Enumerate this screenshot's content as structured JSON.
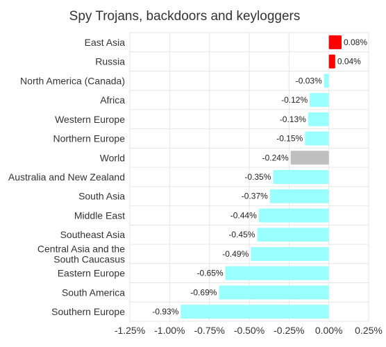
{
  "chart_data": {
    "type": "bar",
    "orientation": "horizontal",
    "title": "Spy Trojans, backdoors and keyloggers",
    "xlabel": "",
    "ylabel": "",
    "xlim": [
      -1.25,
      0.25
    ],
    "x_ticks": [
      "-1.25%",
      "-1.00%",
      "-0.75%",
      "-0.50%",
      "-0.25%",
      "0.00%",
      "0.25%"
    ],
    "grid": true,
    "colors": {
      "positive": "#ff0000",
      "negative": "#99ffff",
      "world": "#c0c0c0"
    },
    "categories": [
      {
        "label": "East Asia",
        "value": 0.08,
        "value_label": "0.08%",
        "kind": "positive"
      },
      {
        "label": "Russia",
        "value": 0.04,
        "value_label": "0.04%",
        "kind": "positive"
      },
      {
        "label": "North America (Canada)",
        "value": -0.03,
        "value_label": "-0.03%",
        "kind": "negative"
      },
      {
        "label": "Africa",
        "value": -0.12,
        "value_label": "-0.12%",
        "kind": "negative"
      },
      {
        "label": "Western Europe",
        "value": -0.13,
        "value_label": "-0.13%",
        "kind": "negative"
      },
      {
        "label": "Northern Europe",
        "value": -0.15,
        "value_label": "-0.15%",
        "kind": "negative"
      },
      {
        "label": "World",
        "value": -0.24,
        "value_label": "-0.24%",
        "kind": "world"
      },
      {
        "label": "Australia and New Zealand",
        "value": -0.35,
        "value_label": "-0.35%",
        "kind": "negative"
      },
      {
        "label": "South Asia",
        "value": -0.37,
        "value_label": "-0.37%",
        "kind": "negative"
      },
      {
        "label": "Middle East",
        "value": -0.44,
        "value_label": "-0.44%",
        "kind": "negative"
      },
      {
        "label": "Southeast Asia",
        "value": -0.45,
        "value_label": "-0.45%",
        "kind": "negative"
      },
      {
        "label": "Central Asia and the South Caucasus",
        "lines": [
          "Central Asia and the",
          "South Caucasus"
        ],
        "value": -0.49,
        "value_label": "-0.49%",
        "kind": "negative"
      },
      {
        "label": "Eastern Europe",
        "value": -0.65,
        "value_label": "-0.65%",
        "kind": "negative"
      },
      {
        "label": "South America",
        "value": -0.69,
        "value_label": "-0.69%",
        "kind": "negative"
      },
      {
        "label": "Southern Europe",
        "value": -0.93,
        "value_label": "-0.93%",
        "kind": "negative"
      }
    ]
  }
}
